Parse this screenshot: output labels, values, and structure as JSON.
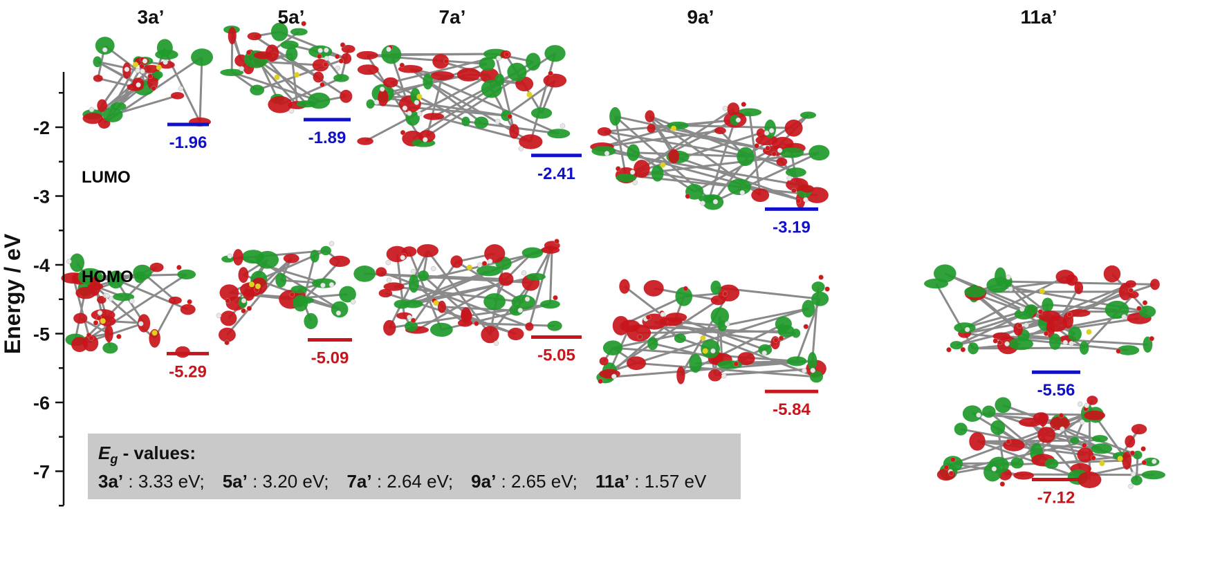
{
  "chart_data": {
    "type": "scatter",
    "title": "",
    "xlabel": "",
    "ylabel": "Energy / eV",
    "ylim": [
      -7.5,
      -1.2
    ],
    "yticks": [
      -2,
      -3,
      -4,
      -5,
      -6,
      -7
    ],
    "ytick_labels": [
      "-2",
      "-3",
      "-4",
      "-5",
      "-6",
      "-7"
    ],
    "categories": [
      "3a’",
      "5a’",
      "7a’",
      "9a’",
      "11a’"
    ],
    "series": [
      {
        "name": "LUMO",
        "color": "#1010c8",
        "values": [
          -1.96,
          -1.89,
          -2.41,
          -3.19,
          -5.56
        ],
        "labels": [
          "-1.96",
          "-1.89",
          "-2.41",
          "-3.19",
          "-5.56"
        ]
      },
      {
        "name": "HOMO",
        "color": "#c8151b",
        "values": [
          -5.29,
          -5.09,
          -5.05,
          -5.84,
          -7.12
        ],
        "labels": [
          "-5.29",
          "-5.09",
          "-5.05",
          "-5.84",
          "-7.12"
        ]
      }
    ],
    "bandgap_box": {
      "heading_symbol": "E",
      "heading_subscript": "g",
      "heading_rest": " - values:",
      "entries": [
        {
          "compound": "3a’",
          "value": " : 3.33 eV;"
        },
        {
          "compound": "5a’",
          "value": " : 3.20 eV;"
        },
        {
          "compound": "7a’",
          "value": " : 2.64 eV;"
        },
        {
          "compound": "9a’",
          "value": " : 2.65 eV;"
        },
        {
          "compound": "11a’",
          "value": " : 1.57 eV"
        }
      ]
    },
    "orbital_colors": {
      "positive": "#c8151b",
      "negative": "#1f9a2a",
      "carbon": "#8a8a8a",
      "oxygen": "#d01818",
      "sulfur": "#e0d020",
      "hydrogen": "#e8e8e8"
    }
  }
}
